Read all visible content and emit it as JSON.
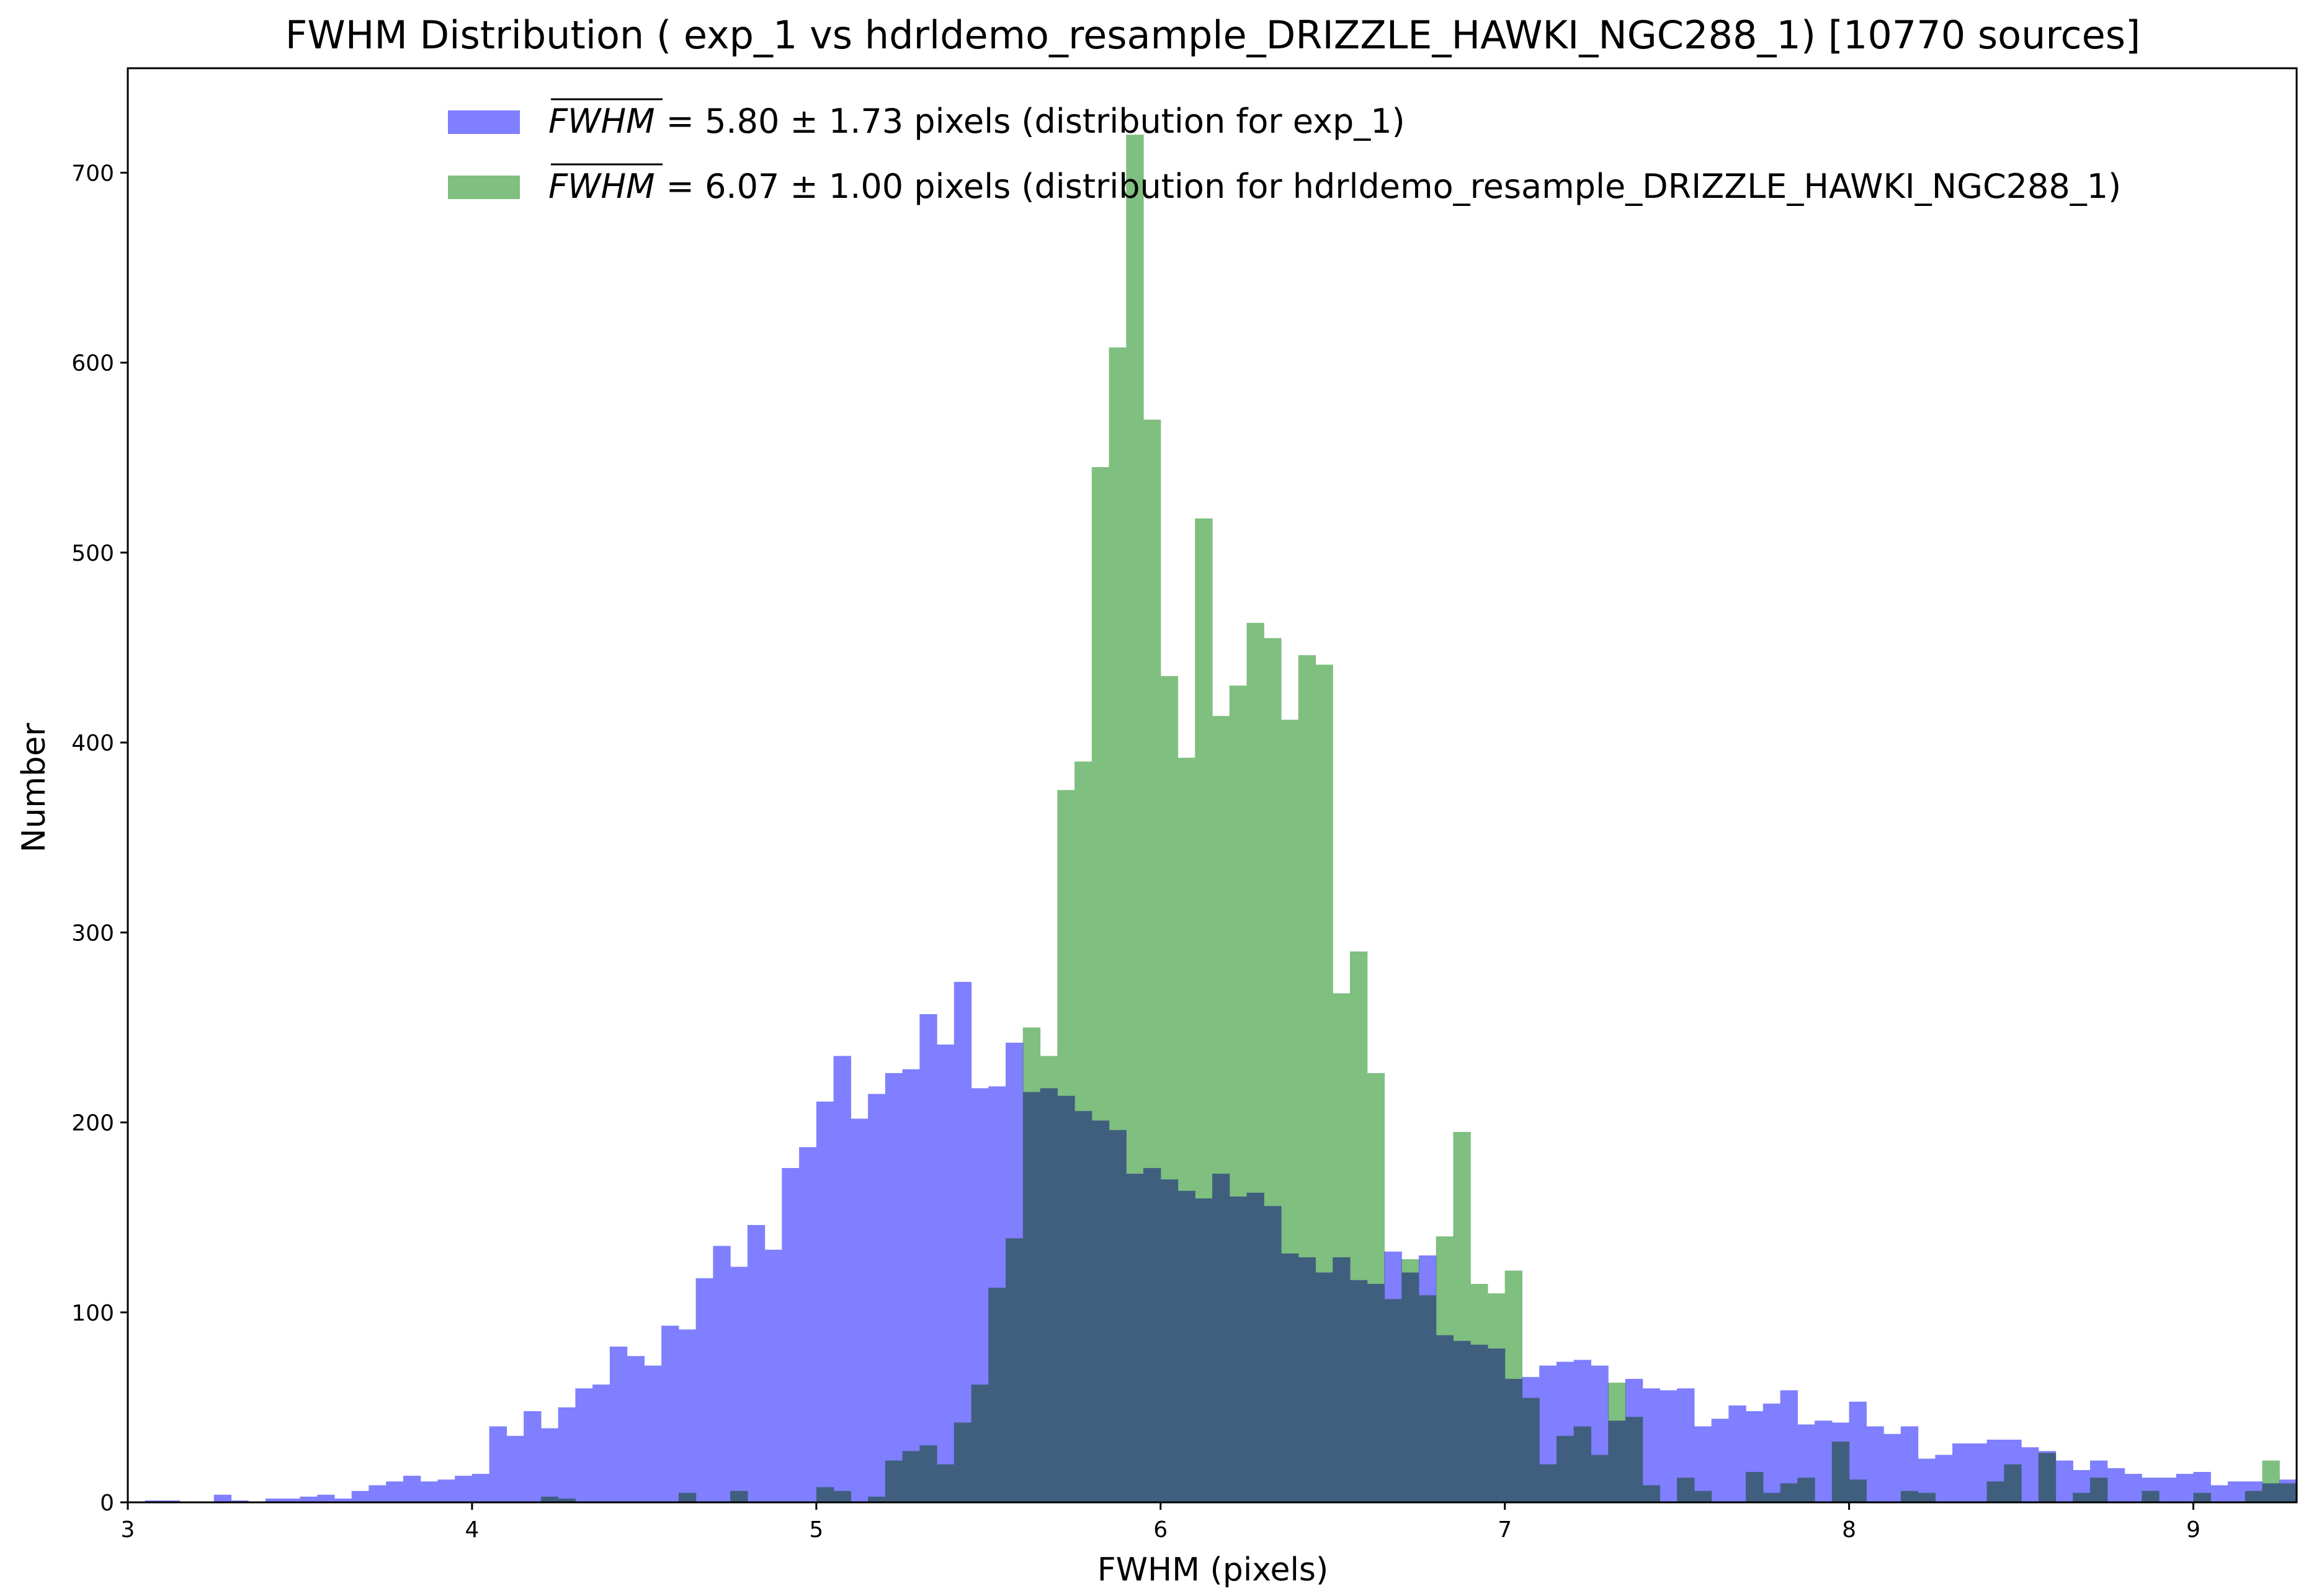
{
  "chart_data": {
    "type": "bar",
    "title": "FWHM Distribution ( exp_1 vs  hdrldemo_resample_DRIZZLE_HAWKI_NGC288_1)  [10770  sources]",
    "xlabel": "FWHM (pixels)",
    "ylabel": "Number",
    "xlim": [
      3.0,
      9.3
    ],
    "ylim": [
      0,
      755
    ],
    "x_ticks": [
      3,
      4,
      5,
      6,
      7,
      8,
      9
    ],
    "y_ticks": [
      0,
      100,
      200,
      300,
      400,
      500,
      600,
      700
    ],
    "bin_start": 3.0,
    "bin_width": 0.05,
    "legend_position": "top-center",
    "legend_symbol": "FWHM",
    "series": [
      {
        "name": "= 5.80 ± 1.73 pixels (distribution for  exp_1)",
        "color": "#7f7fff",
        "values": [
          0,
          1,
          1,
          0,
          0,
          4,
          1,
          0,
          2,
          2,
          3,
          4,
          2,
          6,
          9,
          11,
          14,
          11,
          12,
          14,
          15,
          40,
          35,
          48,
          39,
          50,
          60,
          62,
          82,
          77,
          72,
          93,
          91,
          118,
          135,
          124,
          146,
          133,
          176,
          187,
          211,
          235,
          202,
          215,
          226,
          228,
          257,
          241,
          274,
          218,
          219,
          242,
          216,
          218,
          214,
          206,
          201,
          196,
          173,
          176,
          170,
          164,
          160,
          173,
          161,
          163,
          156,
          131,
          129,
          121,
          129,
          117,
          115,
          132,
          121,
          130,
          88,
          85,
          83,
          81,
          65,
          66,
          72,
          74,
          75,
          72,
          43,
          65,
          60,
          59,
          60,
          40,
          44,
          51,
          48,
          52,
          59,
          41,
          43,
          42,
          53,
          40,
          36,
          40,
          23,
          25,
          31,
          31,
          33,
          33,
          29,
          27,
          22,
          17,
          22,
          18,
          15,
          13,
          13,
          15,
          16,
          9,
          11,
          11,
          10,
          12
        ]
      },
      {
        "name": "= 6.07 ± 1.00 pixels (distribution for  hdrldemo_resample_DRIZZLE_HAWKI_NGC288_1)",
        "color": "#7fbf7f",
        "values": [
          0,
          0,
          0,
          0,
          0,
          0,
          0,
          0,
          0,
          0,
          0,
          0,
          0,
          0,
          0,
          0,
          0,
          0,
          0,
          0,
          0,
          0,
          0,
          0,
          3,
          2,
          0,
          0,
          0,
          0,
          0,
          0,
          5,
          0,
          0,
          6,
          0,
          0,
          0,
          0,
          8,
          6,
          0,
          3,
          22,
          27,
          30,
          20,
          42,
          62,
          113,
          139,
          250,
          235,
          375,
          390,
          545,
          608,
          720,
          570,
          435,
          392,
          518,
          414,
          430,
          463,
          455,
          412,
          446,
          441,
          268,
          290,
          226,
          107,
          128,
          109,
          140,
          195,
          115,
          110,
          122,
          55,
          20,
          35,
          40,
          25,
          63,
          45,
          9,
          0,
          13,
          6,
          0,
          0,
          16,
          5,
          10,
          13,
          0,
          32,
          12,
          0,
          0,
          6,
          5,
          0,
          0,
          0,
          11,
          20,
          0,
          26,
          0,
          5,
          13,
          0,
          0,
          6,
          0,
          0,
          5,
          0,
          0,
          6,
          22,
          10
        ]
      }
    ]
  }
}
